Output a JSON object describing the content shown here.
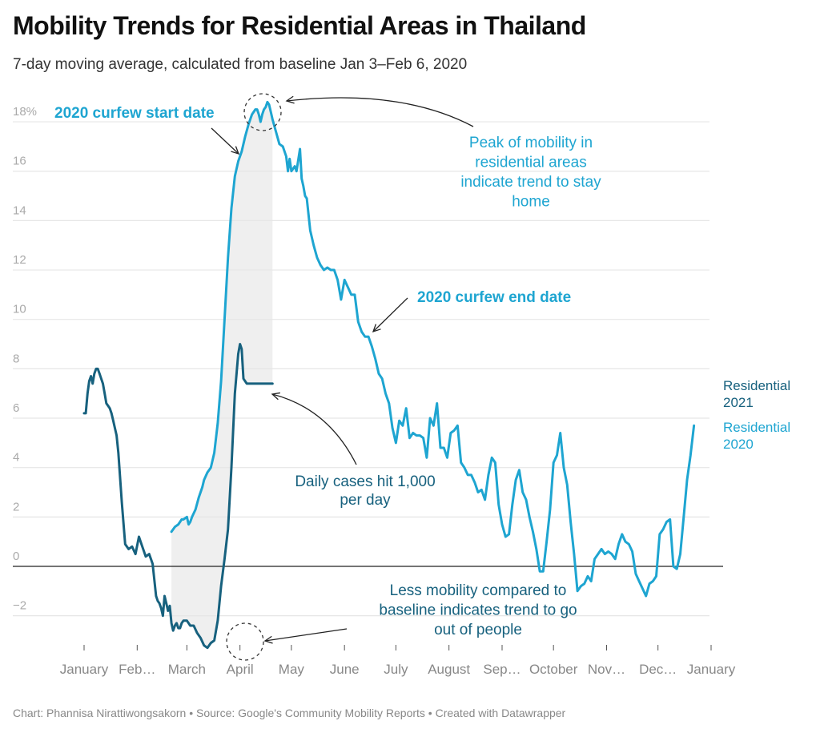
{
  "title": "Mobility Trends for Residential Areas in Thailand",
  "subtitle": "7-day moving average, calculated from baseline Jan 3–Feb 6, 2020",
  "footer": "Chart: Phannisa Nirattiwongsakorn • Source: Google's Community Mobility Reports • Created with Datawrapper",
  "colors": {
    "residential_2020": "#1ea5d1",
    "residential_2021": "#17617e",
    "shade": "#efefef",
    "annotation_arrow": "#222222"
  },
  "chart_data": {
    "type": "line",
    "title": "Mobility Trends for Residential Areas in Thailand",
    "xlabel": "",
    "ylabel": "",
    "ylim": [
      -3.5,
      19
    ],
    "xlim_days": [
      0,
      366
    ],
    "y_ticks": [
      -2,
      0,
      2,
      4,
      6,
      8,
      10,
      12,
      14,
      16,
      18
    ],
    "y_tick_labels": [
      "−2",
      "0",
      "2",
      "4",
      "6",
      "8",
      "10",
      "12",
      "14",
      "16",
      "18%"
    ],
    "x_ticks": [
      {
        "day": 0,
        "label": "January"
      },
      {
        "day": 31,
        "label": "Feb…"
      },
      {
        "day": 60,
        "label": "March"
      },
      {
        "day": 91,
        "label": "April"
      },
      {
        "day": 121,
        "label": "May"
      },
      {
        "day": 152,
        "label": "June"
      },
      {
        "day": 182,
        "label": "July"
      },
      {
        "day": 213,
        "label": "August"
      },
      {
        "day": 244,
        "label": "Sep…"
      },
      {
        "day": 274,
        "label": "October"
      },
      {
        "day": 305,
        "label": "Nov…"
      },
      {
        "day": 335,
        "label": "Dec…"
      },
      {
        "day": 366,
        "label": "January"
      }
    ],
    "grid": true,
    "shaded_range_days": [
      51,
      110
    ],
    "series": [
      {
        "name": "Residential 2020",
        "label": "Residential 2020",
        "x_days": [
          51,
          53,
          55,
          57,
          58,
          60,
          61,
          62,
          63,
          65,
          67,
          69,
          70,
          72,
          74,
          76,
          78,
          80,
          82,
          84,
          86,
          88,
          90,
          92,
          94,
          96,
          98,
          100,
          101,
          102,
          103,
          104,
          105,
          106,
          107,
          108,
          109,
          110,
          112,
          114,
          116,
          118,
          119,
          120,
          121,
          123,
          124,
          126,
          127,
          128,
          129,
          130,
          132,
          134,
          136,
          138,
          140,
          142,
          144,
          146,
          148,
          150,
          152,
          154,
          156,
          158,
          160,
          162,
          164,
          166,
          168,
          170,
          172,
          174,
          176,
          178,
          180,
          182,
          184,
          186,
          188,
          190,
          192,
          194,
          196,
          198,
          200,
          202,
          204,
          206,
          208,
          210,
          212,
          214,
          216,
          218,
          220,
          222,
          224,
          226,
          228,
          230,
          232,
          234,
          236,
          238,
          240,
          242,
          244,
          246,
          248,
          250,
          252,
          254,
          256,
          258,
          260,
          262,
          264,
          266,
          268,
          270,
          272,
          274,
          276,
          278,
          280,
          282,
          284,
          286,
          288,
          290,
          292,
          294,
          296,
          298,
          300,
          302,
          304,
          306,
          308,
          310,
          312,
          314,
          316,
          318,
          320,
          322,
          324,
          326,
          328,
          330,
          332,
          334,
          336,
          338,
          340,
          342,
          344,
          346,
          348,
          350,
          352,
          354,
          356,
          358,
          360,
          362,
          364
        ],
        "values": [
          1.4,
          1.6,
          1.7,
          1.9,
          1.9,
          2.0,
          1.7,
          1.8,
          2.0,
          2.3,
          2.8,
          3.2,
          3.5,
          3.8,
          4.0,
          4.6,
          5.8,
          7.5,
          10.0,
          12.5,
          14.5,
          15.8,
          16.4,
          16.8,
          17.4,
          17.9,
          18.3,
          18.5,
          18.5,
          18.3,
          18.0,
          18.3,
          18.5,
          18.6,
          18.8,
          18.7,
          18.4,
          18.1,
          17.6,
          17.1,
          17.0,
          16.6,
          16.0,
          16.5,
          16.0,
          16.2,
          16.0,
          16.9,
          15.7,
          15.4,
          15.0,
          14.9,
          13.6,
          13.0,
          12.5,
          12.2,
          12.0,
          12.1,
          12.0,
          12.0,
          11.6,
          10.8,
          11.6,
          11.3,
          11.0,
          11.0,
          9.9,
          9.5,
          9.3,
          9.3,
          8.9,
          8.4,
          7.8,
          7.6,
          7.0,
          6.6,
          5.6,
          5.0,
          5.9,
          5.7,
          6.4,
          5.2,
          5.4,
          5.3,
          5.3,
          5.2,
          4.4,
          6.0,
          5.7,
          6.6,
          4.8,
          4.8,
          4.4,
          5.4,
          5.5,
          5.7,
          4.2,
          4.0,
          3.7,
          3.7,
          3.4,
          3.0,
          3.1,
          2.7,
          3.7,
          4.4,
          4.2,
          2.5,
          1.7,
          1.2,
          1.3,
          2.5,
          3.5,
          3.9,
          3.0,
          2.7,
          2.0,
          1.4,
          0.7,
          -0.2,
          -0.2,
          1.0,
          2.3,
          4.2,
          4.5,
          5.4,
          4.0,
          3.3,
          1.8,
          0.5,
          -1.0,
          -0.8,
          -0.7,
          -0.4,
          -0.6,
          0.3,
          0.5,
          0.7,
          0.5,
          0.6,
          0.5,
          0.3,
          0.9,
          1.3,
          1.0,
          0.9,
          0.6,
          -0.3,
          -0.6,
          -0.9,
          -1.2,
          -0.7,
          -0.6,
          -0.4,
          1.3,
          1.5,
          1.8,
          1.9,
          0.0,
          -0.1,
          0.5,
          2.0,
          3.5,
          4.5,
          5.7
        ]
      },
      {
        "name": "Residential 2021",
        "label": "Residential 2021",
        "x_days": [
          0,
          1,
          2,
          3,
          4,
          5,
          6,
          7,
          8,
          9,
          10,
          11,
          12,
          13,
          14,
          15,
          16,
          17,
          18,
          19,
          20,
          22,
          24,
          26,
          28,
          30,
          32,
          34,
          36,
          38,
          40,
          42,
          43,
          44,
          45,
          46,
          47,
          48,
          49,
          50,
          51,
          52,
          53,
          54,
          55,
          56,
          57,
          58,
          60,
          62,
          64,
          66,
          68,
          70,
          72,
          74,
          76,
          78,
          80,
          82,
          84,
          86,
          88,
          90,
          91,
          92,
          93,
          94,
          95,
          96,
          97,
          98,
          99,
          100,
          101,
          102,
          103,
          104,
          105,
          106,
          107,
          108,
          109,
          110
        ],
        "values": [
          6.2,
          6.2,
          7.0,
          7.5,
          7.7,
          7.4,
          7.8,
          8.0,
          8.0,
          7.8,
          7.6,
          7.4,
          7.0,
          6.6,
          6.5,
          6.4,
          6.2,
          5.9,
          5.6,
          5.3,
          4.6,
          2.6,
          0.9,
          0.7,
          0.8,
          0.5,
          1.2,
          0.8,
          0.4,
          0.5,
          0.1,
          -1.2,
          -1.4,
          -1.5,
          -1.7,
          -2.0,
          -1.2,
          -1.5,
          -1.8,
          -1.6,
          -2.3,
          -2.6,
          -2.4,
          -2.3,
          -2.5,
          -2.5,
          -2.3,
          -2.2,
          -2.2,
          -2.4,
          -2.4,
          -2.7,
          -2.9,
          -3.2,
          -3.3,
          -3.1,
          -3.0,
          -2.2,
          -0.8,
          0.3,
          1.5,
          4.0,
          7.0,
          8.6,
          9.0,
          8.8,
          7.6,
          7.5,
          7.4,
          7.4,
          7.4,
          7.4,
          7.4,
          7.4,
          7.4,
          7.4,
          7.4,
          7.4,
          7.4,
          7.4,
          7.4,
          7.4,
          7.4,
          7.4
        ]
      }
    ],
    "annotations": [
      {
        "text": "2020 curfew start date",
        "style": "bold",
        "series": "Residential 2020"
      },
      {
        "text": "Peak of mobility in residential areas indicate trend to stay home",
        "lines": [
          "Peak of mobility in",
          "residential areas",
          "indicate trend to stay",
          "home"
        ],
        "series": "Residential 2020"
      },
      {
        "text": "2020 curfew end date",
        "style": "bold",
        "series": "Residential 2020"
      },
      {
        "text": "Daily cases hit 1,000 per day",
        "lines": [
          "Daily cases hit 1,000",
          "per day"
        ],
        "series": "Residential 2021"
      },
      {
        "text": "Less mobility compared to baseline indicates trend to go out of people",
        "lines": [
          "Less mobility compared to",
          "baseline indicates trend to go",
          "out of people"
        ],
        "series": "Residential 2021"
      }
    ]
  }
}
